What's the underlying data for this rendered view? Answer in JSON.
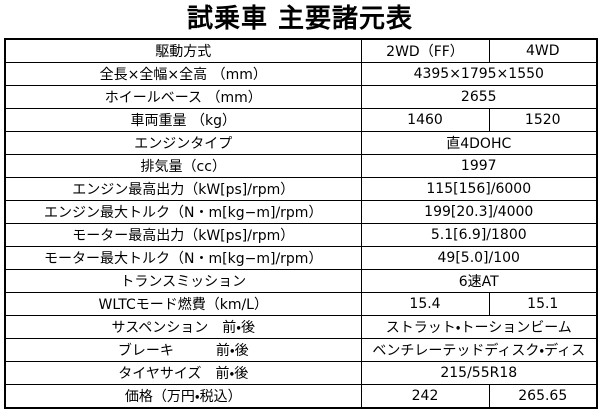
{
  "header": {
    "title": "試乗車 主要諸元表"
  },
  "table": {
    "rows": [
      [
        "駆動方式",
        "2WD（FF）",
        "4WD"
      ],
      [
        "全長×全幅×全高 （mm）",
        "4395×1795×1550"
      ],
      [
        "ホイールベース （mm）",
        "2655"
      ],
      [
        "車両重量 （kg）",
        "1460",
        "1520"
      ],
      [
        "エンジンタイプ",
        "直4DOHC"
      ],
      [
        "排気量（cc）",
        "1997"
      ],
      [
        "エンジン最高出力（kW[ps]/rpm）",
        "115[156]/6000"
      ],
      [
        "エンジン最大トルク（N・m[kg−m]/rpm）",
        "199[20.3]/4000"
      ],
      [
        "モーター最高出力（kW[ps]/rpm）",
        "5.1[6.9]/1800"
      ],
      [
        "モーター最大トルク（N・m[kg−m]/rpm）",
        "49[5.0]/100"
      ],
      [
        "トランスミッション",
        "6速AT"
      ],
      [
        "WLTCモード燃費（km/L）",
        "15.4",
        "15.1"
      ],
      [
        "サスペンション　前・後",
        "ストラット・トーションビーム"
      ],
      [
        "ブレーキ　　　前・後",
        "ベンチレーテッドディスク・ディス"
      ],
      [
        "タイヤサイズ　前・後",
        "215/55R18"
      ],
      [
        "価格（万円・税込）",
        "242",
        "265.65"
      ]
    ]
  }
}
